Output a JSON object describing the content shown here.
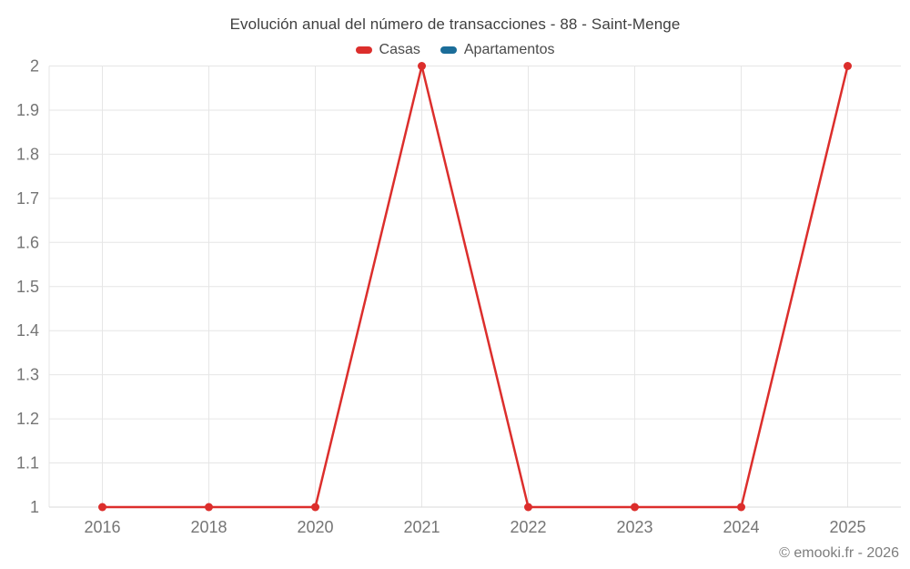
{
  "chart": {
    "title": "Evolución anual del número de transacciones - 88 - Saint-Menge",
    "copyright": "© emooki.fr - 2026"
  },
  "colors": {
    "casas": "#dc2e2c",
    "apartamentos": "#1b6d99",
    "grid": "#e6e6e6",
    "axis_line": "#d9d9d9",
    "tick_text": "#757575"
  },
  "chart_data": {
    "type": "line",
    "title": "Evolución anual del número de transacciones - 88 - Saint-Menge",
    "categories": [
      "2016",
      "2018",
      "2020",
      "2021",
      "2022",
      "2023",
      "2024",
      "2025"
    ],
    "series": [
      {
        "name": "Casas",
        "color": "#dc2e2c",
        "values": [
          1,
          1,
          1,
          2,
          1,
          1,
          1,
          2
        ]
      },
      {
        "name": "Apartamentos",
        "color": "#1b6d99",
        "values": []
      }
    ],
    "xlabel": "",
    "ylabel": "",
    "ylim": [
      1,
      2
    ],
    "y_ticks": [
      "1",
      "1.1",
      "1.2",
      "1.3",
      "1.4",
      "1.5",
      "1.6",
      "1.7",
      "1.8",
      "1.9",
      "2"
    ],
    "grid": true,
    "legend_position": "top",
    "markers": true
  }
}
